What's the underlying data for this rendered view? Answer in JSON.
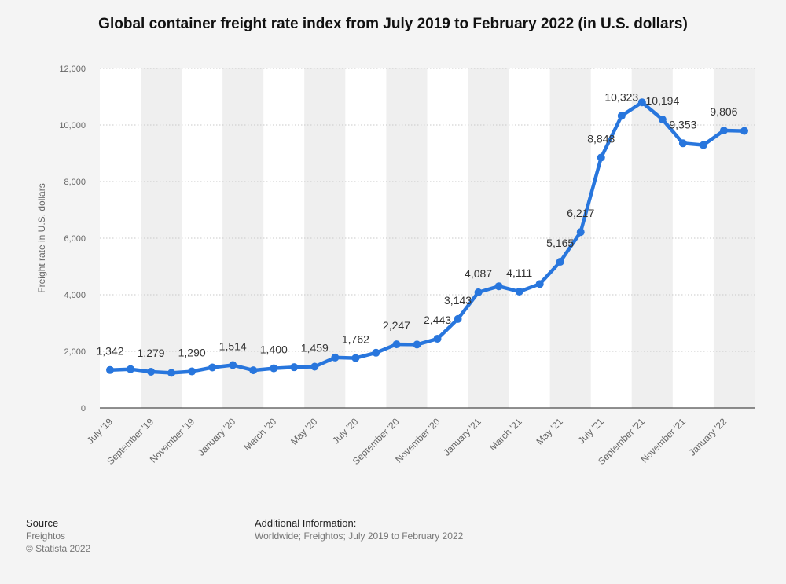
{
  "chart_data": {
    "type": "line",
    "title": "Global container freight rate index from July 2019 to February 2022 (in U.S. dollars)",
    "xlabel": "",
    "ylabel": "Freight rate in U.S. dollars",
    "ylim": [
      0,
      12000
    ],
    "y_ticks": [
      "0",
      "2,000",
      "4,000",
      "6,000",
      "8,000",
      "10,000",
      "12,000"
    ],
    "grid": true,
    "x_tick_labels": [
      "July '19",
      "September '19",
      "November '19",
      "January '20",
      "March '20",
      "May '20",
      "July '20",
      "September '20",
      "November '20",
      "January '21",
      "March '21",
      "May '21",
      "July '21",
      "September '21",
      "November '21",
      "January '22"
    ],
    "categories": [
      "Jul 2019",
      "Aug 2019",
      "Sep 2019",
      "Oct 2019",
      "Nov 2019",
      "Dec 2019",
      "Jan 2020",
      "Feb 2020",
      "Mar 2020",
      "Apr 2020",
      "May 2020",
      "Jun 2020",
      "Jul 2020",
      "Aug 2020",
      "Sep 2020",
      "Oct 2020",
      "Nov 2020",
      "Dec 2020",
      "Jan 2021",
      "Feb 2021",
      "Mar 2021",
      "Apr 2021",
      "May 2021",
      "Jun 2021",
      "Jul 2021",
      "Aug 2021",
      "Sep 2021",
      "Oct 2021",
      "Nov 2021",
      "Dec 2021",
      "Jan 2022",
      "Feb 2022"
    ],
    "values": [
      1342,
      1370,
      1279,
      1240,
      1290,
      1430,
      1514,
      1330,
      1400,
      1440,
      1459,
      1780,
      1762,
      1950,
      2247,
      2240,
      2443,
      3143,
      4087,
      4300,
      4111,
      4380,
      5165,
      6217,
      8848,
      10323,
      10800,
      10194,
      9353,
      9290,
      9806,
      9790
    ],
    "data_labels": [
      "1,342",
      null,
      "1,279",
      null,
      "1,290",
      null,
      "1,514",
      null,
      "1,400",
      null,
      "1,459",
      null,
      "1,762",
      null,
      "2,247",
      null,
      "2,443",
      "3,143",
      "4,087",
      null,
      "4,111",
      null,
      "5,165",
      "6,217",
      "8,848",
      "10,323",
      null,
      "10,194",
      "9,353",
      null,
      "9,806",
      null
    ],
    "line_color": "#2876dd"
  },
  "footer": {
    "source_heading": "Source",
    "source_name": "Freightos",
    "copyright": "© Statista 2022",
    "info_heading": "Additional Information:",
    "info_text": "Worldwide; Freightos; July 2019 to February 2022"
  }
}
